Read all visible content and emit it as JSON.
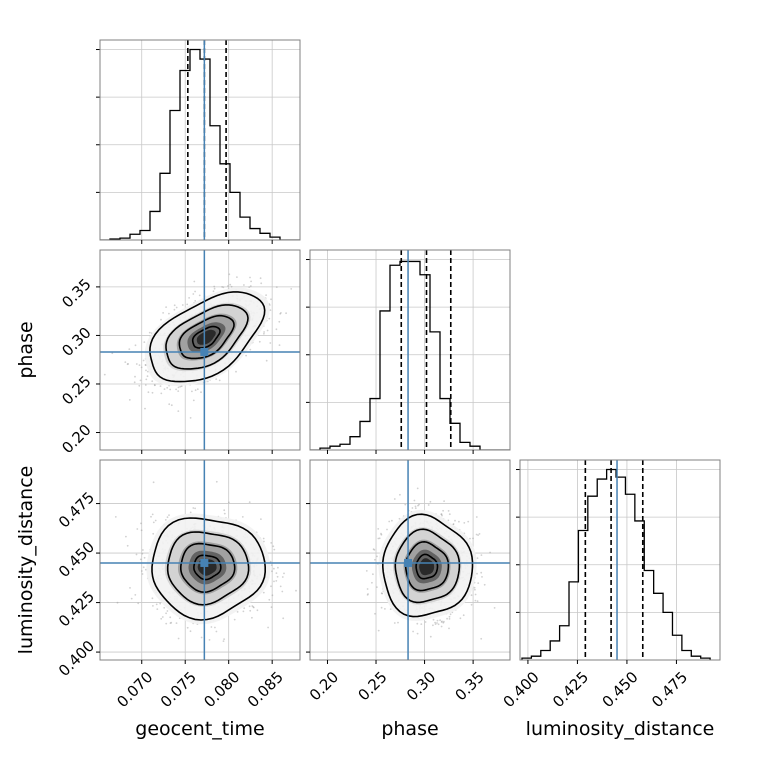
{
  "chart_data": {
    "type": "corner",
    "parameters": [
      "geocent_time",
      "phase",
      "luminosity_distance"
    ],
    "axis_labels": [
      "geocent_time",
      "phase",
      "luminosity_distance"
    ],
    "ranges": [
      [
        0.0652,
        0.0882
      ],
      [
        0.182,
        0.388
      ],
      [
        0.396,
        0.497
      ]
    ],
    "ticks": [
      [
        "0.070",
        "0.075",
        "0.080",
        "0.085"
      ],
      [
        "0.20",
        "0.25",
        "0.30",
        "0.35"
      ],
      [
        "0.400",
        "0.425",
        "0.450",
        "0.475"
      ]
    ],
    "truths": [
      0.0772,
      0.283,
      0.445
    ],
    "truth_color": "#4682b4",
    "quantiles": [
      [
        0.0753,
        0.0772,
        0.0797
      ],
      [
        0.276,
        0.302,
        0.327
      ],
      [
        0.429,
        0.442,
        0.458
      ]
    ],
    "histograms": [
      {
        "edges_start": 0.0652,
        "bin_width": 0.00115,
        "counts": [
          0.0,
          0.005,
          0.01,
          0.03,
          0.05,
          0.15,
          0.35,
          0.68,
          0.89,
          1.0,
          0.95,
          0.6,
          0.4,
          0.25,
          0.12,
          0.06,
          0.035,
          0.015,
          0.0,
          0.0
        ]
      },
      {
        "edges_start": 0.182,
        "bin_width": 0.0103,
        "counts": [
          0.0,
          0.01,
          0.02,
          0.03,
          0.07,
          0.15,
          0.27,
          0.73,
          0.97,
          0.99,
          0.99,
          0.92,
          0.62,
          0.27,
          0.14,
          0.04,
          0.02,
          0.0,
          0.0,
          0.0
        ]
      },
      {
        "edges_start": 0.397,
        "bin_width": 0.00475,
        "counts": [
          0.01,
          0.02,
          0.05,
          0.1,
          0.18,
          0.41,
          0.68,
          0.86,
          0.95,
          1.0,
          0.96,
          0.87,
          0.73,
          0.47,
          0.35,
          0.25,
          0.13,
          0.05,
          0.02,
          0.01
        ]
      }
    ],
    "posterior_2d": [
      {
        "x_param": 0,
        "y_param": 1,
        "mean": [
          0.0774,
          0.298
        ],
        "std": [
          0.0031,
          0.022
        ],
        "corr": 0.5
      },
      {
        "x_param": 0,
        "y_param": 2,
        "mean": [
          0.0775,
          0.443
        ],
        "std": [
          0.0031,
          0.012
        ],
        "corr": 0.0
      },
      {
        "x_param": 1,
        "y_param": 2,
        "mean": [
          0.302,
          0.443
        ],
        "std": [
          0.022,
          0.012
        ],
        "corr": 0.0
      }
    ],
    "contour_levels_sigma": [
      0.5,
      1.0,
      1.5,
      2.0
    ],
    "grid": true
  }
}
